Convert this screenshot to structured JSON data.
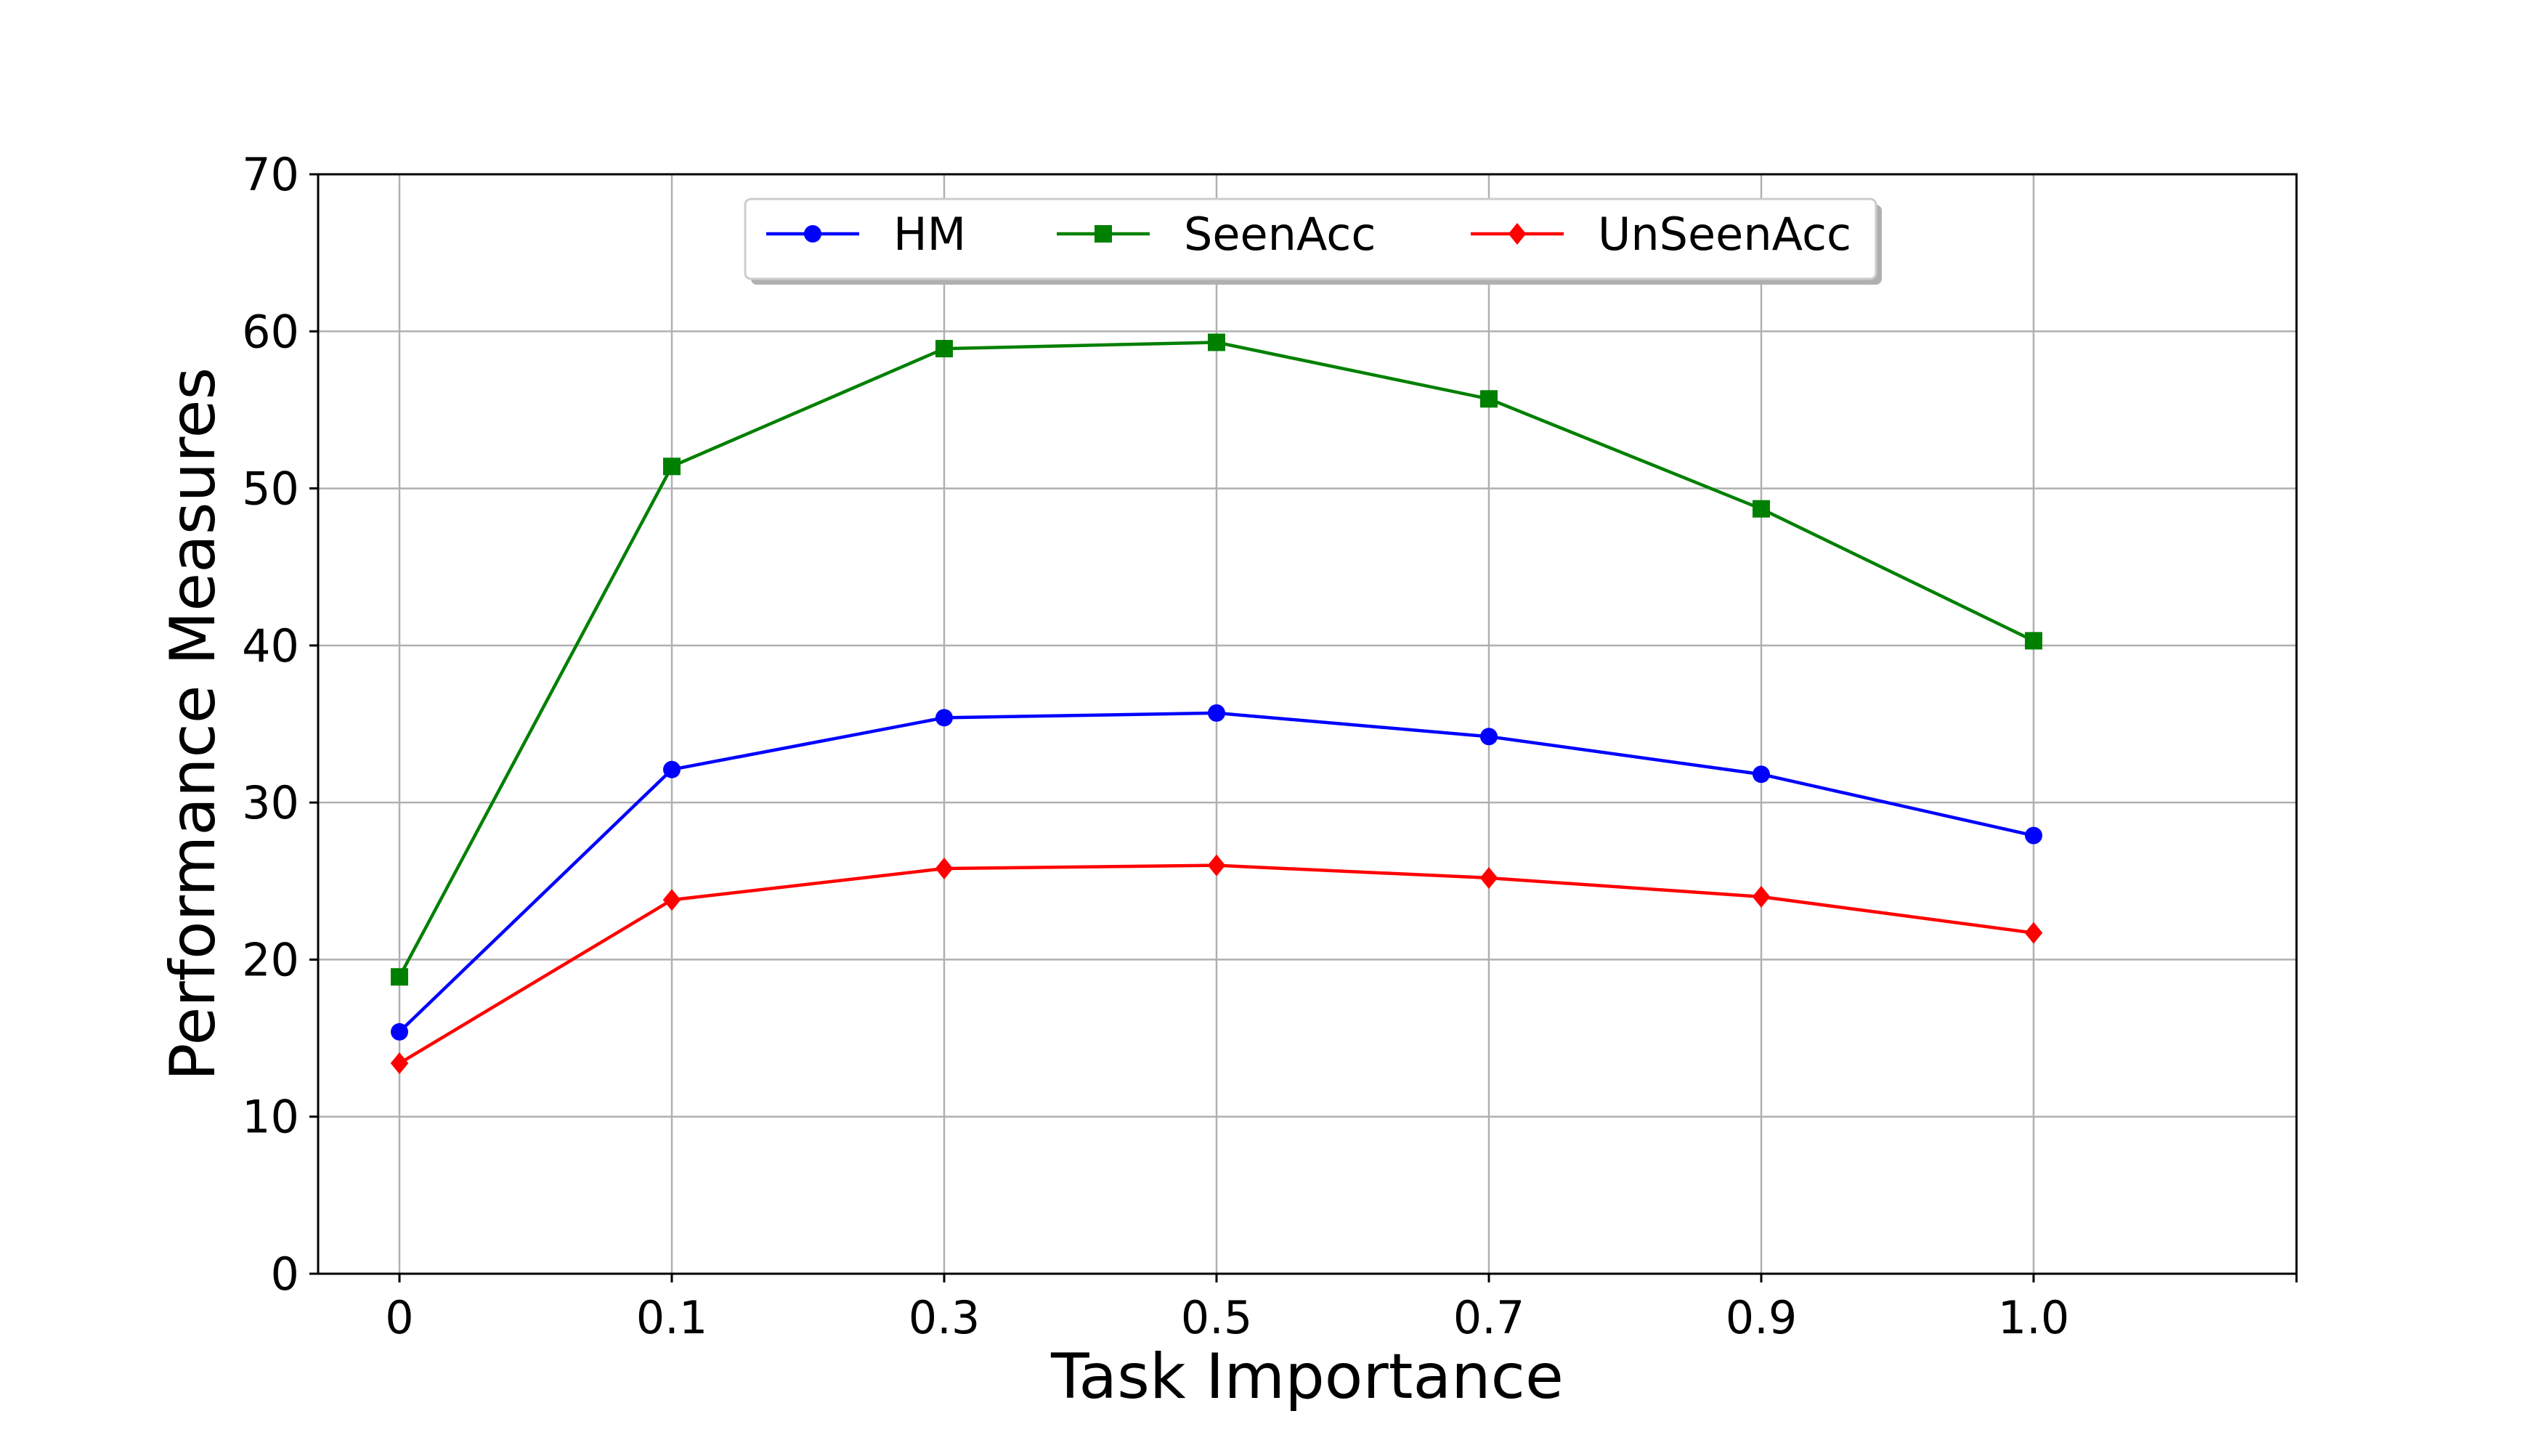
{
  "chart_data": {
    "type": "line",
    "title": "",
    "xlabel": "Task Importance",
    "ylabel": "Performance Measures",
    "categories": [
      "0",
      "0.1",
      "0.3",
      "0.5",
      "0.7",
      "0.9",
      "1.0"
    ],
    "ylim": [
      0,
      70
    ],
    "yticks": [
      0,
      10,
      20,
      30,
      40,
      50,
      60,
      70
    ],
    "grid": true,
    "legend": {
      "placement": "top-center",
      "columns": 3
    },
    "series": [
      {
        "name": "HM",
        "color": "#0000ff",
        "marker": "circle",
        "values": [
          15.4,
          32.1,
          35.4,
          35.7,
          34.2,
          31.8,
          27.9
        ]
      },
      {
        "name": "SeenAcc",
        "color": "#008000",
        "marker": "square",
        "values": [
          18.9,
          51.4,
          58.9,
          59.3,
          55.7,
          48.7,
          40.3
        ]
      },
      {
        "name": "UnSeenAcc",
        "color": "#ff0000",
        "marker": "diamond",
        "values": [
          13.4,
          23.8,
          25.8,
          26.0,
          25.2,
          24.0,
          21.7
        ]
      }
    ]
  }
}
